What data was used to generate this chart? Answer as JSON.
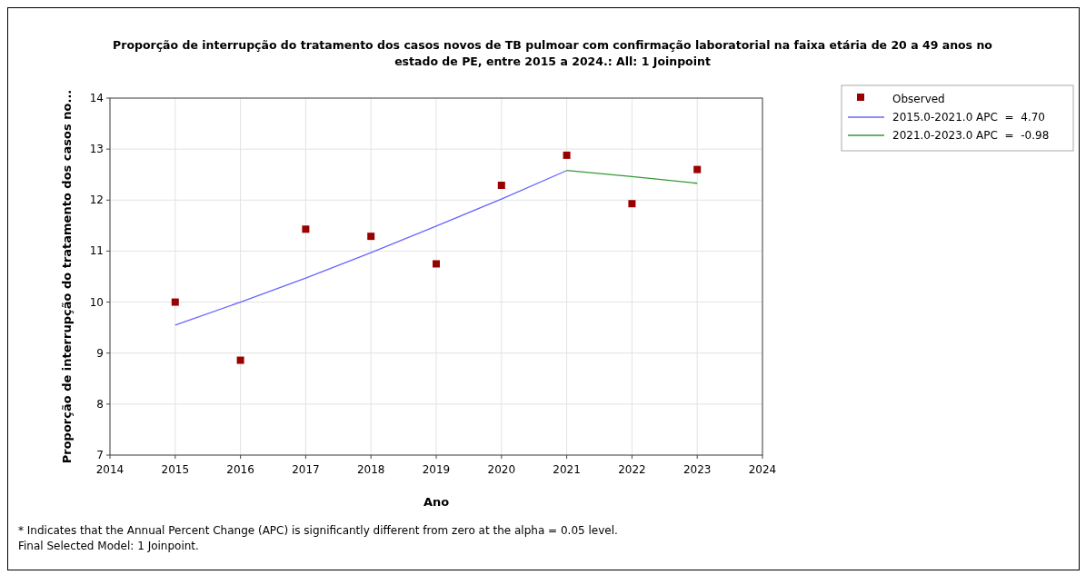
{
  "chart_data": {
    "type": "scatter",
    "title": "Proporção de interrupção do tratamento dos casos novos de TB pulmoar com confirmação laboratorial na faixa etária de 20 a 49 anos no estado de PE, entre 2015 a 2024.: All: 1 Joinpoint",
    "xlabel": "Ano",
    "ylabel": "Proporção de interrupção do tratamento dos casos no...",
    "annotations": [
      "* Indicates that the Annual Percent Change (APC) is significantly different from zero at the alpha = 0.05 level.",
      "Final Selected Model: 1 Joinpoint."
    ],
    "xlim": [
      2014,
      2024
    ],
    "xticks": [
      2014,
      2015,
      2016,
      2017,
      2018,
      2019,
      2020,
      2021,
      2022,
      2023,
      2024
    ],
    "ylim": [
      7,
      14
    ],
    "yticks": [
      7,
      8,
      9,
      10,
      11,
      12,
      13,
      14
    ],
    "grid": true,
    "legend": "top right",
    "line_style": "solid",
    "series": [
      {
        "name": "Observed",
        "marker": "square",
        "color": "#990000",
        "x": [
          2015,
          2016,
          2017,
          2018,
          2019,
          2020,
          2021,
          2022,
          2023
        ],
        "values": [
          10.0,
          8.86,
          11.43,
          11.29,
          10.75,
          12.29,
          12.88,
          11.93,
          12.6
        ]
      },
      {
        "name": "2015.0-2021.0 APC  =  4.70",
        "type": "line",
        "color": "#6666ff",
        "x": [
          2015,
          2016,
          2017,
          2018,
          2019,
          2020,
          2021
        ],
        "values": [
          9.55,
          10.0,
          10.47,
          10.97,
          11.49,
          12.02,
          12.58
        ]
      },
      {
        "name": "2021.0-2023.0 APC  =  -0.98",
        "type": "line",
        "color": "#339933",
        "x": [
          2021,
          2022,
          2023
        ],
        "values": [
          12.58,
          12.46,
          12.33
        ]
      }
    ]
  }
}
